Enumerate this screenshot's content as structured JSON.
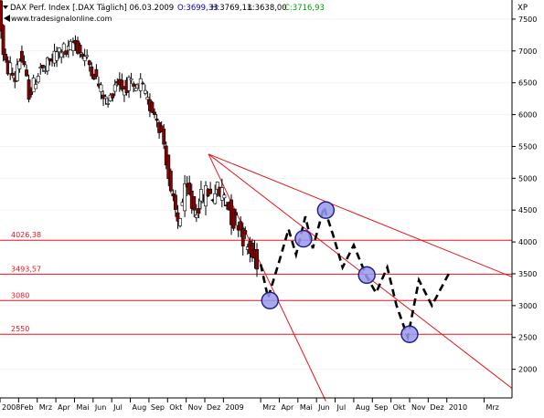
{
  "header": {
    "symbol": "DAX Perf. Index [.DAX Täglich] 06.03.2009",
    "open": "O:3699,33",
    "high": "H:3769,13",
    "low": "L:3638,00",
    "close": "C:3716,93",
    "watermark": "www.tradesignalonline.com",
    "unit": "XP"
  },
  "colors": {
    "candle_up": "#ffffff",
    "candle_down": "#8b0000",
    "outline": "#000000",
    "level_line": "#e8141c",
    "level_label": "#e8141c",
    "marker_fill": "#9999ee",
    "marker_stroke": "#1a1a80",
    "ohlc_open": "#0000cc",
    "ohlc_close": "#00a000",
    "grid": "#f3f3f3"
  },
  "chart_data": {
    "type": "candlestick",
    "ylim": [
      1550,
      7800
    ],
    "y_ticks": [
      2000,
      2500,
      3000,
      3500,
      4000,
      4500,
      5000,
      5500,
      6000,
      6500,
      7000,
      7500
    ],
    "x_ticks": [
      {
        "label": "2008",
        "m": 0
      },
      {
        "label": "Feb",
        "m": 1
      },
      {
        "label": "Mrz",
        "m": 2
      },
      {
        "label": "Apr",
        "m": 3
      },
      {
        "label": "Mai",
        "m": 4
      },
      {
        "label": "Jun",
        "m": 5
      },
      {
        "label": "Jul",
        "m": 6
      },
      {
        "label": "Aug",
        "m": 7
      },
      {
        "label": "Sep",
        "m": 8
      },
      {
        "label": "Okt",
        "m": 9
      },
      {
        "label": "Nov",
        "m": 10
      },
      {
        "label": "Dez",
        "m": 11
      },
      {
        "label": "2009",
        "m": 12
      },
      {
        "label": "Mrz",
        "m": 14
      },
      {
        "label": "Apr",
        "m": 15
      },
      {
        "label": "Mai",
        "m": 16
      },
      {
        "label": "Jun",
        "m": 17
      },
      {
        "label": "Jul",
        "m": 18
      },
      {
        "label": "Aug",
        "m": 19
      },
      {
        "label": "Sep",
        "m": 20
      },
      {
        "label": "Okt",
        "m": 21
      },
      {
        "label": "Nov",
        "m": 22
      },
      {
        "label": "Dez",
        "m": 23
      },
      {
        "label": "2010",
        "m": 24
      },
      {
        "label": "Mrz",
        "m": 26
      }
    ],
    "price_path": [
      [
        0.0,
        7900
      ],
      [
        0.15,
        7450
      ],
      [
        0.3,
        6900
      ],
      [
        0.5,
        6700
      ],
      [
        0.7,
        6750
      ],
      [
        0.9,
        6500
      ],
      [
        1.1,
        6900
      ],
      [
        1.3,
        6850
      ],
      [
        1.5,
        6600
      ],
      [
        1.7,
        6300
      ],
      [
        1.9,
        6450
      ],
      [
        2.1,
        6600
      ],
      [
        2.3,
        6750
      ],
      [
        2.5,
        6650
      ],
      [
        2.7,
        6800
      ],
      [
        2.9,
        6850
      ],
      [
        3.1,
        6950
      ],
      [
        3.3,
        7000
      ],
      [
        3.5,
        7050
      ],
      [
        3.7,
        6950
      ],
      [
        3.9,
        7050
      ],
      [
        4.1,
        7150
      ],
      [
        4.3,
        7050
      ],
      [
        4.5,
        6950
      ],
      [
        4.7,
        6900
      ],
      [
        4.9,
        6800
      ],
      [
        5.1,
        6700
      ],
      [
        5.3,
        6550
      ],
      [
        5.5,
        6400
      ],
      [
        5.7,
        6300
      ],
      [
        5.9,
        6150
      ],
      [
        6.1,
        6300
      ],
      [
        6.3,
        6500
      ],
      [
        6.5,
        6550
      ],
      [
        6.7,
        6400
      ],
      [
        6.9,
        6450
      ],
      [
        7.1,
        6500
      ],
      [
        7.3,
        6350
      ],
      [
        7.5,
        6400
      ],
      [
        7.7,
        6500
      ],
      [
        7.9,
        6300
      ],
      [
        8.1,
        6150
      ],
      [
        8.3,
        6100
      ],
      [
        8.5,
        6000
      ],
      [
        8.7,
        5800
      ],
      [
        8.9,
        5600
      ],
      [
        9.1,
        5200
      ],
      [
        9.3,
        4700
      ],
      [
        9.5,
        4500
      ],
      [
        9.7,
        4300
      ],
      [
        9.9,
        4600
      ],
      [
        10.1,
        4800
      ],
      [
        10.3,
        4700
      ],
      [
        10.5,
        4500
      ],
      [
        10.7,
        4550
      ],
      [
        10.9,
        4650
      ],
      [
        11.1,
        4750
      ],
      [
        11.3,
        4800
      ],
      [
        11.5,
        4700
      ],
      [
        11.7,
        4850
      ],
      [
        11.9,
        4750
      ],
      [
        12.1,
        4800
      ],
      [
        12.3,
        4650
      ],
      [
        12.5,
        4450
      ],
      [
        12.7,
        4300
      ],
      [
        12.9,
        4350
      ],
      [
        13.1,
        4150
      ],
      [
        13.3,
        4000
      ],
      [
        13.5,
        3850
      ],
      [
        13.7,
        3750
      ],
      [
        13.9,
        3700
      ]
    ],
    "forecast_path": [
      [
        14.0,
        3650
      ],
      [
        14.4,
        3120
      ],
      [
        15.0,
        3700
      ],
      [
        15.5,
        4200
      ],
      [
        15.9,
        3800
      ],
      [
        16.4,
        4400
      ],
      [
        16.8,
        3900
      ],
      [
        17.4,
        4550
      ],
      [
        17.9,
        4100
      ],
      [
        18.4,
        3600
      ],
      [
        19.0,
        3950
      ],
      [
        19.7,
        3450
      ],
      [
        20.2,
        3200
      ],
      [
        20.8,
        3600
      ],
      [
        21.3,
        3000
      ],
      [
        21.9,
        2500
      ],
      [
        22.5,
        3400
      ],
      [
        23.2,
        3000
      ],
      [
        24.1,
        3500
      ]
    ],
    "levels": [
      {
        "label": "4026,38",
        "value": 4026.38
      },
      {
        "label": "3493,57",
        "value": 3493.57
      },
      {
        "label": "3080",
        "value": 3080
      },
      {
        "label": "2550",
        "value": 2550
      }
    ],
    "trendlines": [
      {
        "from": [
          11.2,
          5380
        ],
        "to": [
          27.5,
          1700
        ]
      },
      {
        "from": [
          11.2,
          5380
        ],
        "to": [
          27.5,
          3450
        ]
      },
      {
        "from": [
          11.2,
          5380
        ],
        "to": [
          17.5,
          1500
        ]
      }
    ],
    "markers": [
      {
        "m": 14.5,
        "value": 3080
      },
      {
        "m": 16.3,
        "value": 4050
      },
      {
        "m": 17.5,
        "value": 4500
      },
      {
        "m": 19.7,
        "value": 3480
      },
      {
        "m": 22.0,
        "value": 2550
      }
    ]
  }
}
